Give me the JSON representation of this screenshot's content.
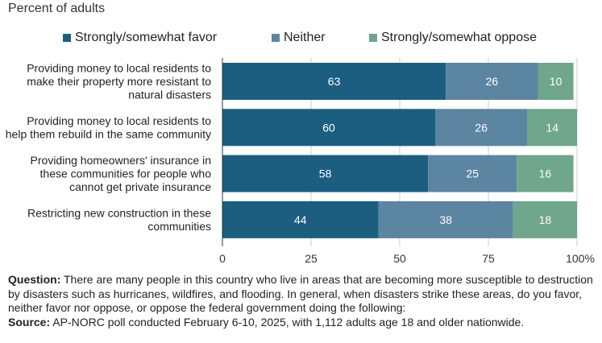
{
  "subtitle": "Percent of adults",
  "colors": {
    "favor": "#1b5e80",
    "neither": "#5c85a1",
    "oppose": "#6fa68c",
    "grid": "#cccccc",
    "axis": "#333333"
  },
  "chart_data": {
    "type": "bar",
    "orientation": "horizontal",
    "stacked": true,
    "categories": [
      [
        "Providing money to local residents to",
        "make their property more resistant to",
        "natural disasters"
      ],
      [
        "Providing money to local residents to",
        "help them rebuild in the same community"
      ],
      [
        "Providing homeowners' insurance in",
        "these communities for people who",
        "cannot get private insurance"
      ],
      [
        "Restricting new construction in these",
        "communities"
      ]
    ],
    "series": [
      {
        "name": "Strongly/somewhat favor",
        "values": [
          63,
          60,
          58,
          44
        ]
      },
      {
        "name": "Neither",
        "values": [
          26,
          26,
          25,
          38
        ]
      },
      {
        "name": "Strongly/somewhat oppose",
        "values": [
          10,
          14,
          16,
          18
        ]
      }
    ],
    "xlim": [
      0,
      100
    ],
    "xticks": [
      "0",
      "25",
      "50",
      "75",
      "100%"
    ],
    "grid": true,
    "legend_position": "top"
  },
  "footnote": {
    "question_label": "Question:",
    "question_text": " There are many people in this country who live in areas that are becoming more susceptible to destruction by disasters such as hurricanes, wildfires, and flooding. In general, when disasters strike these areas, do you favor, neither favor nor oppose, or oppose the federal government doing the following:",
    "source_label": "Source:",
    "source_text": " AP-NORC poll conducted February 6-10, 2025, with 1,112 adults age 18 and older nationwide."
  }
}
